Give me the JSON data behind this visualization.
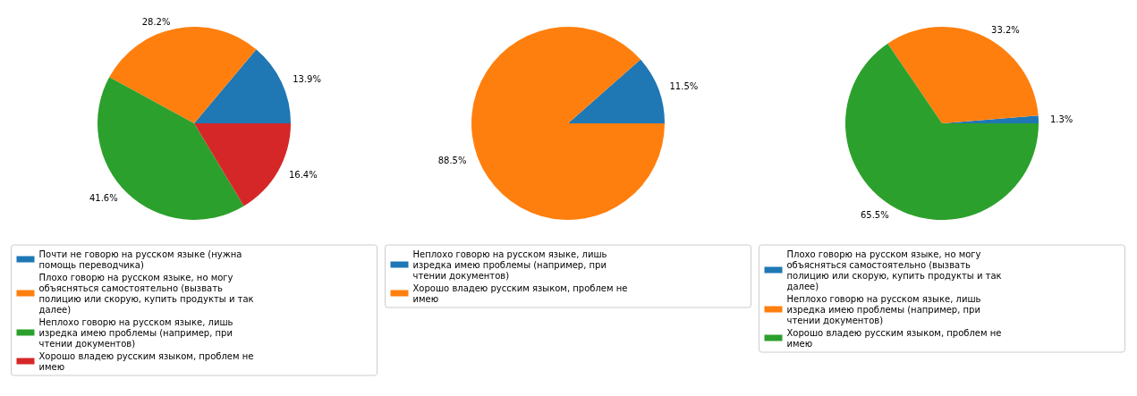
{
  "chart_data": [
    {
      "type": "pie",
      "categories": [
        "Почти не говорю на русском языке (нужна помощь переводчика)",
        "Плохо говорю на русском языке, но могу объясняться самостоятельно (вызвать полицию или скорую, купить продукты и так далее)",
        "Неплохо говорю на русском языке, лишь изредка имею проблемы (например, при чтении документов)",
        "Хорошо владею русским языком, проблем не имею"
      ],
      "values": [
        13.9,
        28.2,
        41.6,
        16.4
      ],
      "colors": [
        "#1f77b4",
        "#ff7f0e",
        "#2ca02c",
        "#d62728"
      ],
      "value_labels": [
        "13.9%",
        "28.2%",
        "41.6%",
        "16.4%"
      ],
      "legend": "bottom"
    },
    {
      "type": "pie",
      "categories": [
        "Неплохо говорю на русском языке, лишь изредка имею проблемы (например, при чтении документов)",
        "Хорошо владею русским языком, проблем не имею"
      ],
      "values": [
        11.5,
        88.5
      ],
      "colors": [
        "#1f77b4",
        "#ff7f0e"
      ],
      "value_labels": [
        "11.5%",
        "88.5%"
      ],
      "legend": "bottom"
    },
    {
      "type": "pie",
      "categories": [
        "Плохо говорю на русском языке, но могу объясняться самостоятельно (вызвать полицию или скорую, купить продукты и так далее)",
        "Неплохо говорю на русском языке, лишь изредка имею проблемы (например, при чтении документов)",
        "Хорошо владею русским языком, проблем не имею"
      ],
      "values": [
        1.3,
        33.2,
        65.5
      ],
      "colors": [
        "#1f77b4",
        "#ff7f0e",
        "#2ca02c"
      ],
      "value_labels": [
        "1.3%",
        "33.2%",
        "65.5%"
      ],
      "legend": "bottom"
    }
  ]
}
